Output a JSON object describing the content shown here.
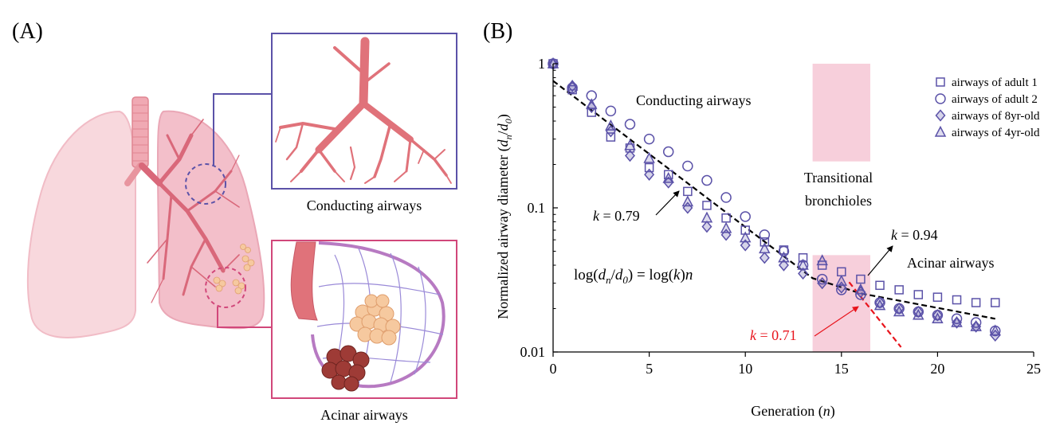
{
  "panel_a": {
    "label": "(A)",
    "conducting_caption": "Conducting airways",
    "acinar_caption": "Acinar airways",
    "colors": {
      "conducting": "#5b52a8",
      "acinar": "#d1477a",
      "lung": "#f4c6cf",
      "airway": "#e0727a"
    }
  },
  "panel_b": {
    "label": "(B)"
  },
  "chart_data": {
    "type": "scatter",
    "xlabel_main": "Generation (",
    "xlabel_var": "n",
    "xlabel_close": ")",
    "ylabel_main": "Normalized airway diameter (",
    "ylabel_num": "d",
    "ylabel_num_sub": "n",
    "ylabel_slash": "/",
    "ylabel_den": "d",
    "ylabel_den_sub": "0",
    "ylabel_close": ")",
    "xlim": [
      0,
      25
    ],
    "ylim": [
      0.01,
      1
    ],
    "yscale": "log",
    "xticks": [
      0,
      5,
      10,
      15,
      20,
      25
    ],
    "yticks": [
      {
        "value": 1,
        "label": "1"
      },
      {
        "value": 0.1,
        "label": "0.1"
      },
      {
        "value": 0.01,
        "label": "0.01"
      }
    ],
    "grid": false,
    "legend_position": "top-right",
    "marker_color": "#5b52a8",
    "series": [
      {
        "name": "airways of adult 1",
        "marker": "square",
        "x": [
          0,
          1,
          2,
          3,
          4,
          5,
          6,
          7,
          8,
          9,
          10,
          11,
          12,
          13,
          14,
          15,
          16,
          17,
          18,
          19,
          20,
          21,
          22,
          23
        ],
        "y": [
          1,
          0.66,
          0.46,
          0.31,
          0.26,
          0.19,
          0.17,
          0.13,
          0.104,
          0.085,
          0.07,
          0.058,
          0.051,
          0.045,
          0.04,
          0.036,
          0.032,
          0.029,
          0.027,
          0.025,
          0.024,
          0.023,
          0.022,
          0.022
        ]
      },
      {
        "name": "airways of adult 2",
        "marker": "circle",
        "x": [
          0,
          1,
          2,
          3,
          4,
          5,
          6,
          7,
          8,
          9,
          10,
          11,
          12,
          13,
          14,
          15,
          16,
          17,
          18,
          19,
          20,
          21,
          22,
          23
        ],
        "y": [
          1,
          0.68,
          0.6,
          0.47,
          0.38,
          0.3,
          0.245,
          0.195,
          0.155,
          0.118,
          0.087,
          0.065,
          0.05,
          0.04,
          0.032,
          0.027,
          0.025,
          0.022,
          0.02,
          0.019,
          0.018,
          0.017,
          0.016,
          0.014
        ]
      },
      {
        "name": "airways of 8yr-old",
        "marker": "diamond",
        "x": [
          0,
          1,
          2,
          3,
          4,
          5,
          6,
          7,
          8,
          9,
          10,
          11,
          12,
          13,
          14,
          15,
          16,
          17,
          18,
          19,
          20,
          21,
          22,
          23
        ],
        "y": [
          1,
          0.7,
          0.5,
          0.34,
          0.23,
          0.17,
          0.15,
          0.1,
          0.074,
          0.065,
          0.055,
          0.045,
          0.04,
          0.035,
          0.03,
          0.028,
          0.026,
          0.022,
          0.02,
          0.019,
          0.018,
          0.016,
          0.015,
          0.013
        ]
      },
      {
        "name": "airways of 4yr-old",
        "marker": "triangle",
        "x": [
          0,
          1,
          2,
          3,
          4,
          5,
          6,
          7,
          8,
          9,
          10,
          11,
          12,
          13,
          14,
          15,
          16,
          17,
          18,
          19,
          20,
          21,
          22,
          23
        ],
        "y": [
          1,
          0.7,
          0.52,
          0.37,
          0.27,
          0.22,
          0.16,
          0.11,
          0.085,
          0.072,
          0.062,
          0.052,
          0.045,
          0.04,
          0.043,
          0.031,
          0.027,
          0.021,
          0.019,
          0.018,
          0.017,
          0.016,
          0.015,
          0.014
        ]
      }
    ],
    "fit_lines": [
      {
        "color": "#000000",
        "x": [
          0,
          13.5,
          16,
          23
        ],
        "y": [
          0.76,
          0.0325,
          0.0255,
          0.017
        ]
      },
      {
        "color": "#e8141c",
        "x": [
          15.4,
          18.1
        ],
        "y": [
          0.0305,
          0.0108
        ]
      }
    ],
    "shaded_bands": [
      {
        "x": [
          13.5,
          16.5
        ],
        "y": [
          0.21,
          1
        ]
      },
      {
        "x": [
          13.5,
          16.5
        ],
        "y": [
          0.01,
          0.047
        ]
      }
    ],
    "annotations": {
      "conducting": "Conducting airways",
      "transitional_line1": "Transitional",
      "transitional_line2": "bronchioles",
      "acinar": "Acinar airways",
      "k_var": "k",
      "k1_value": " = 0.79",
      "k2_value": " = 0.94",
      "k3_value": " = 0.71",
      "eq_log1": "log(",
      "eq_d1": "d",
      "eq_sub_n": "n",
      "eq_slash": "/",
      "eq_d2": "d",
      "eq_sub_0": "0",
      "eq_mid": ") = log(",
      "eq_k": "k",
      "eq_paren": ")",
      "eq_n": "n"
    }
  }
}
